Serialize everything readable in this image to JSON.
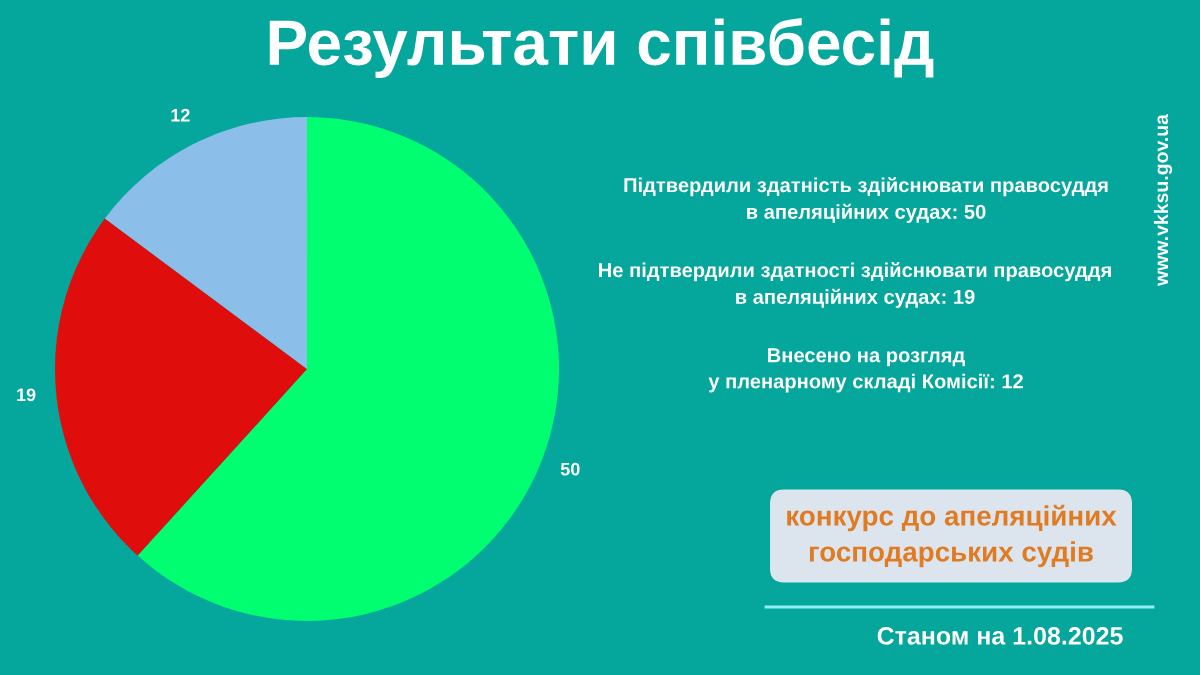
{
  "chart_data": {
    "type": "pie",
    "title": "Результати співбесід",
    "categories": [
      null,
      null,
      null
    ],
    "values": [
      50,
      19,
      12
    ],
    "colors": [
      "#00ff70",
      "#e00d0d",
      "#8bbee8"
    ],
    "data_labels": true,
    "annotations": [
      "Підтвердили здатність здійснювати правосуддя\nв апеляційних судах: 50",
      "Не підтвердили здатності здійснювати правосуддя\nв апеляційних судах: 19",
      "Внесено на розгляд\nу пленарному складі Комісії: 12",
      "конкурс до апеляційних\nгосподарських судів",
      "Станом на 1.08.2025",
      "www.vkksu.gov.ua"
    ]
  }
}
